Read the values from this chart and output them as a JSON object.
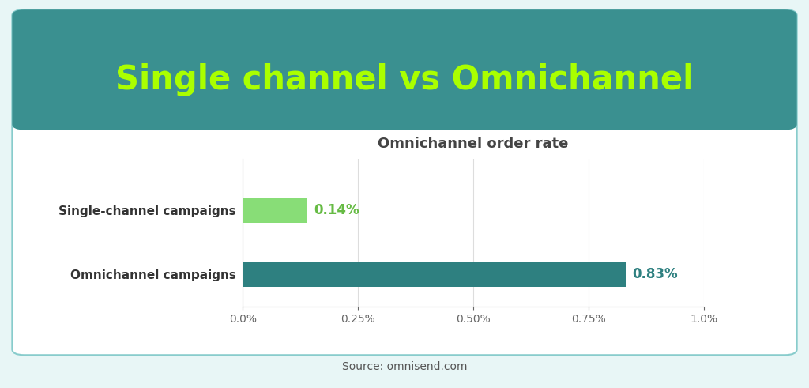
{
  "main_title": "Single channel vs Omnichannel",
  "chart_title": "Omnichannel order rate",
  "source_text": "Source: omnisend.com",
  "categories": [
    "Single-channel campaigns",
    "Omnichannel campaigns"
  ],
  "values": [
    0.0014,
    0.0083
  ],
  "value_labels": [
    "0.14%",
    "0.83%"
  ],
  "bar_colors": [
    "#88dd77",
    "#2e8080"
  ],
  "label_colors": [
    "#66bb44",
    "#2e8080"
  ],
  "header_bg_color": "#3a9090",
  "header_text_color": "#aaff00",
  "outer_bg_color": "#e8f6f6",
  "card_edge_color": "#88cccc",
  "title_fontsize": 30,
  "chart_title_fontsize": 13,
  "bar_label_fontsize": 12,
  "ytick_fontsize": 11,
  "xtick_fontsize": 10,
  "source_fontsize": 10,
  "xlim": [
    0,
    0.01
  ],
  "xticks": [
    0.0,
    0.0025,
    0.005,
    0.0075,
    0.01
  ],
  "xtick_labels": [
    "0.0%",
    "0.25%",
    "0.50%",
    "0.75%",
    "1.0%"
  ]
}
